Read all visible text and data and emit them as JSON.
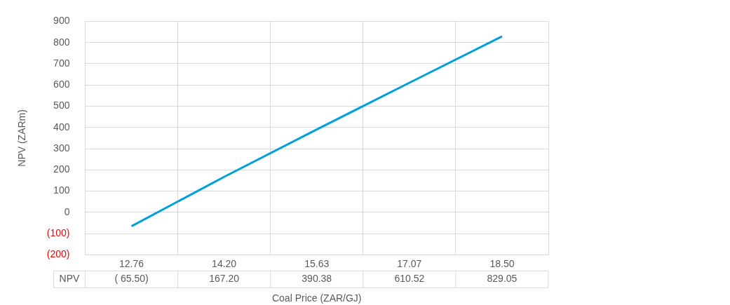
{
  "chart_data": {
    "type": "line",
    "categories": [
      "12.76",
      "14.20",
      "15.63",
      "17.07",
      "18.50"
    ],
    "series": [
      {
        "name": "NPV",
        "color": "#00a0dc",
        "values": [
          -65.5,
          167.2,
          390.38,
          610.52,
          829.05
        ],
        "value_labels": [
          "( 65.50)",
          "167.20",
          "390.38",
          "610.52",
          "829.05"
        ]
      }
    ],
    "xlabel": "Coal Price (ZAR/GJ)",
    "ylabel": "NPV (ZARm)",
    "ylim": [
      -200,
      900
    ],
    "yticks": [
      {
        "value": -200,
        "label": "(200)"
      },
      {
        "value": -100,
        "label": "(100)"
      },
      0,
      100,
      200,
      300,
      400,
      500,
      600,
      700,
      800,
      900
    ],
    "grid": true,
    "legend": false,
    "marker": "none",
    "line_style": "solid"
  }
}
